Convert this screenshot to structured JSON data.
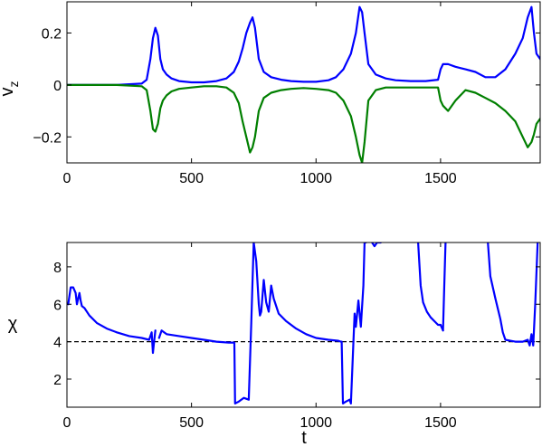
{
  "chart_data": [
    {
      "type": "line",
      "xlabel": "",
      "ylabel": "v",
      "ylabel_subscript": "z",
      "xlim": [
        0,
        1900
      ],
      "ylim": [
        -0.3,
        0.32
      ],
      "xticks": [
        0,
        500,
        1000,
        1500
      ],
      "xtick_labels": [
        "0",
        "500",
        "1000",
        "1500"
      ],
      "yticks": [
        -0.2,
        0,
        0.2
      ],
      "ytick_labels": [
        "−0.2",
        "0",
        "0.2"
      ],
      "grid": false,
      "series": [
        {
          "color": "#0000ff",
          "x": [
            0,
            100,
            200,
            300,
            320,
            335,
            345,
            355,
            365,
            375,
            385,
            400,
            420,
            450,
            500,
            550,
            600,
            640,
            670,
            690,
            705,
            720,
            735,
            745,
            755,
            770,
            790,
            820,
            860,
            900,
            950,
            1000,
            1050,
            1080,
            1110,
            1140,
            1160,
            1175,
            1185,
            1195,
            1210,
            1240,
            1280,
            1320,
            1380,
            1440,
            1490,
            1500,
            1510,
            1530,
            1560,
            1600,
            1640,
            1680,
            1720,
            1760,
            1800,
            1830,
            1850,
            1865,
            1875,
            1885,
            1900
          ],
          "y": [
            0,
            0,
            0,
            0.005,
            0.02,
            0.1,
            0.18,
            0.22,
            0.19,
            0.1,
            0.06,
            0.04,
            0.025,
            0.015,
            0.01,
            0.01,
            0.015,
            0.025,
            0.05,
            0.09,
            0.14,
            0.2,
            0.24,
            0.26,
            0.22,
            0.1,
            0.05,
            0.03,
            0.02,
            0.015,
            0.012,
            0.012,
            0.018,
            0.03,
            0.06,
            0.12,
            0.2,
            0.3,
            0.28,
            0.2,
            0.08,
            0.04,
            0.025,
            0.018,
            0.015,
            0.015,
            0.02,
            0.06,
            0.08,
            0.08,
            0.07,
            0.06,
            0.05,
            0.03,
            0.03,
            0.06,
            0.12,
            0.18,
            0.26,
            0.3,
            0.2,
            0.12,
            0.1
          ]
        },
        {
          "color": "#007f00",
          "x": [
            0,
            100,
            200,
            300,
            320,
            335,
            345,
            355,
            365,
            375,
            385,
            400,
            420,
            450,
            500,
            550,
            600,
            640,
            670,
            690,
            705,
            720,
            735,
            745,
            755,
            770,
            790,
            820,
            860,
            900,
            950,
            1000,
            1050,
            1080,
            1110,
            1140,
            1160,
            1175,
            1185,
            1195,
            1210,
            1240,
            1280,
            1320,
            1380,
            1440,
            1490,
            1500,
            1510,
            1530,
            1560,
            1600,
            1640,
            1680,
            1720,
            1760,
            1800,
            1830,
            1850,
            1865,
            1875,
            1885,
            1900
          ],
          "y": [
            0,
            0,
            0,
            -0.005,
            -0.02,
            -0.1,
            -0.17,
            -0.18,
            -0.15,
            -0.09,
            -0.06,
            -0.04,
            -0.025,
            -0.015,
            -0.01,
            -0.005,
            -0.005,
            -0.01,
            -0.03,
            -0.07,
            -0.14,
            -0.2,
            -0.26,
            -0.24,
            -0.2,
            -0.1,
            -0.05,
            -0.03,
            -0.02,
            -0.015,
            -0.012,
            -0.015,
            -0.02,
            -0.03,
            -0.06,
            -0.12,
            -0.2,
            -0.27,
            -0.3,
            -0.22,
            -0.06,
            -0.02,
            -0.01,
            -0.01,
            -0.01,
            -0.01,
            -0.01,
            -0.06,
            -0.08,
            -0.1,
            -0.06,
            -0.02,
            -0.03,
            -0.05,
            -0.07,
            -0.1,
            -0.14,
            -0.2,
            -0.24,
            -0.22,
            -0.19,
            -0.15,
            -0.13
          ]
        }
      ]
    },
    {
      "type": "line",
      "xlabel": "t",
      "ylabel": "χ",
      "xlim": [
        0,
        1900
      ],
      "ylim": [
        0.5,
        9.3
      ],
      "xticks": [
        0,
        500,
        1000,
        1500
      ],
      "xtick_labels": [
        "0",
        "500",
        "1000",
        "1500"
      ],
      "yticks": [
        2,
        4,
        6,
        8
      ],
      "ytick_labels": [
        "2",
        "4",
        "6",
        "8"
      ],
      "grid": false,
      "reference_line": {
        "y": 4,
        "style": "dashed",
        "color": "#000000"
      },
      "series": [
        {
          "color": "#0000ff",
          "segments": [
            {
              "x": [
                5,
                15,
                25,
                35,
                40,
                45,
                50,
                55,
                60,
                70,
                90,
                120,
                160,
                200,
                250,
                300,
                330,
                340,
                345,
                350,
                355
              ],
              "y": [
                6.0,
                6.9,
                6.9,
                6.6,
                6.0,
                6.3,
                6.6,
                6.2,
                5.9,
                5.8,
                5.4,
                5.0,
                4.7,
                4.5,
                4.3,
                4.2,
                4.1,
                4.5,
                3.4,
                4.0,
                4.6
              ]
            },
            {
              "x": [
                370,
                380,
                400,
                450,
                500,
                550,
                600,
                650,
                670
              ],
              "y": [
                4.2,
                4.6,
                4.4,
                4.3,
                4.2,
                4.1,
                4.0,
                3.95,
                3.95
              ]
            },
            {
              "x": [
                672,
                675,
                690,
                710,
                730,
                740,
                750,
                760,
                770,
                775,
                780,
                790,
                800,
                810,
                820,
                830,
                850,
                880,
                920,
                960,
                1000,
                1050,
                1090,
                1100
              ],
              "y": [
                3.95,
                0.7,
                0.8,
                1.0,
                0.9,
                5.0,
                9.3,
                8.3,
                6.0,
                5.4,
                5.6,
                7.3,
                6.1,
                5.6,
                7.0,
                6.3,
                5.5,
                5.1,
                4.7,
                4.4,
                4.2,
                4.1,
                4.05,
                4.0
              ]
            },
            {
              "x": [
                1103,
                1108,
                1120,
                1135,
                1140,
                1150,
                1155,
                1160,
                1170,
                1180,
                1190,
                1195,
                1200
              ],
              "y": [
                4.0,
                0.7,
                0.8,
                0.9,
                0.7,
                4.0,
                5.5,
                4.8,
                6.2,
                4.8,
                7.0,
                9.3,
                9.3
              ]
            },
            {
              "x": [
                1225,
                1235,
                1245,
                1260
              ],
              "y": [
                9.3,
                9.1,
                9.3,
                9.3
              ]
            },
            {
              "x": [
                1410,
                1420,
                1430,
                1445,
                1460,
                1475,
                1490,
                1500,
                1510
              ],
              "y": [
                9.3,
                7.0,
                6.1,
                5.6,
                5.3,
                5.1,
                4.9,
                4.9,
                4.6
              ]
            },
            {
              "x": [
                1510,
                1515,
                1520
              ],
              "y": [
                4.6,
                7.0,
                9.3
              ]
            },
            {
              "x": [
                1690,
                1700,
                1720,
                1740,
                1750,
                1760,
                1780,
                1800,
                1830,
                1850,
                1858,
                1865,
                1872,
                1880,
                1890
              ],
              "y": [
                9.3,
                7.5,
                6.3,
                5.2,
                4.5,
                4.1,
                4.05,
                4.0,
                4.0,
                4.1,
                3.8,
                4.4,
                3.8,
                6.0,
                9.3
              ]
            }
          ]
        }
      ]
    }
  ]
}
